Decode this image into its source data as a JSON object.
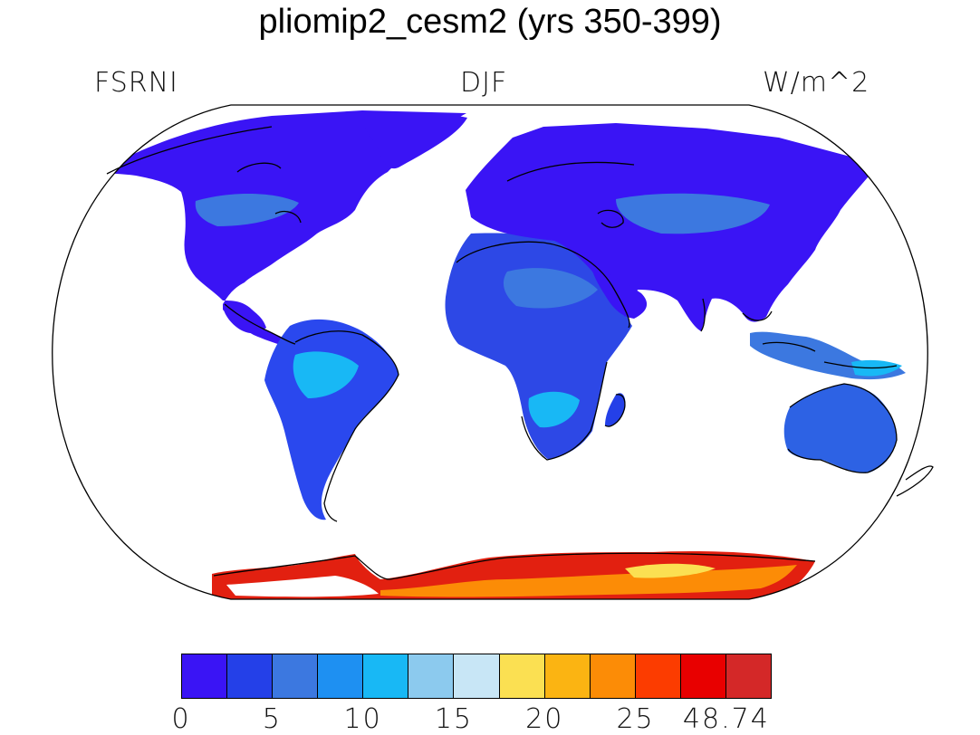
{
  "title": "pliomip2_cesm2 (yrs 350-399)",
  "left_label": "FSRNI",
  "center_label": "DJF",
  "right_label": "W/m^2",
  "colorbar": {
    "colors": [
      "#3a14f5",
      "#2440e8",
      "#3c78e0",
      "#1e90f2",
      "#18b8f5",
      "#8ccaee",
      "#c8e6f6",
      "#fbe052",
      "#fbb412",
      "#fc8c06",
      "#fc3c00",
      "#e80000",
      "#d42828"
    ],
    "tick_labels": [
      "0",
      "5",
      "10",
      "15",
      "20",
      "25",
      "48.74"
    ]
  }
}
